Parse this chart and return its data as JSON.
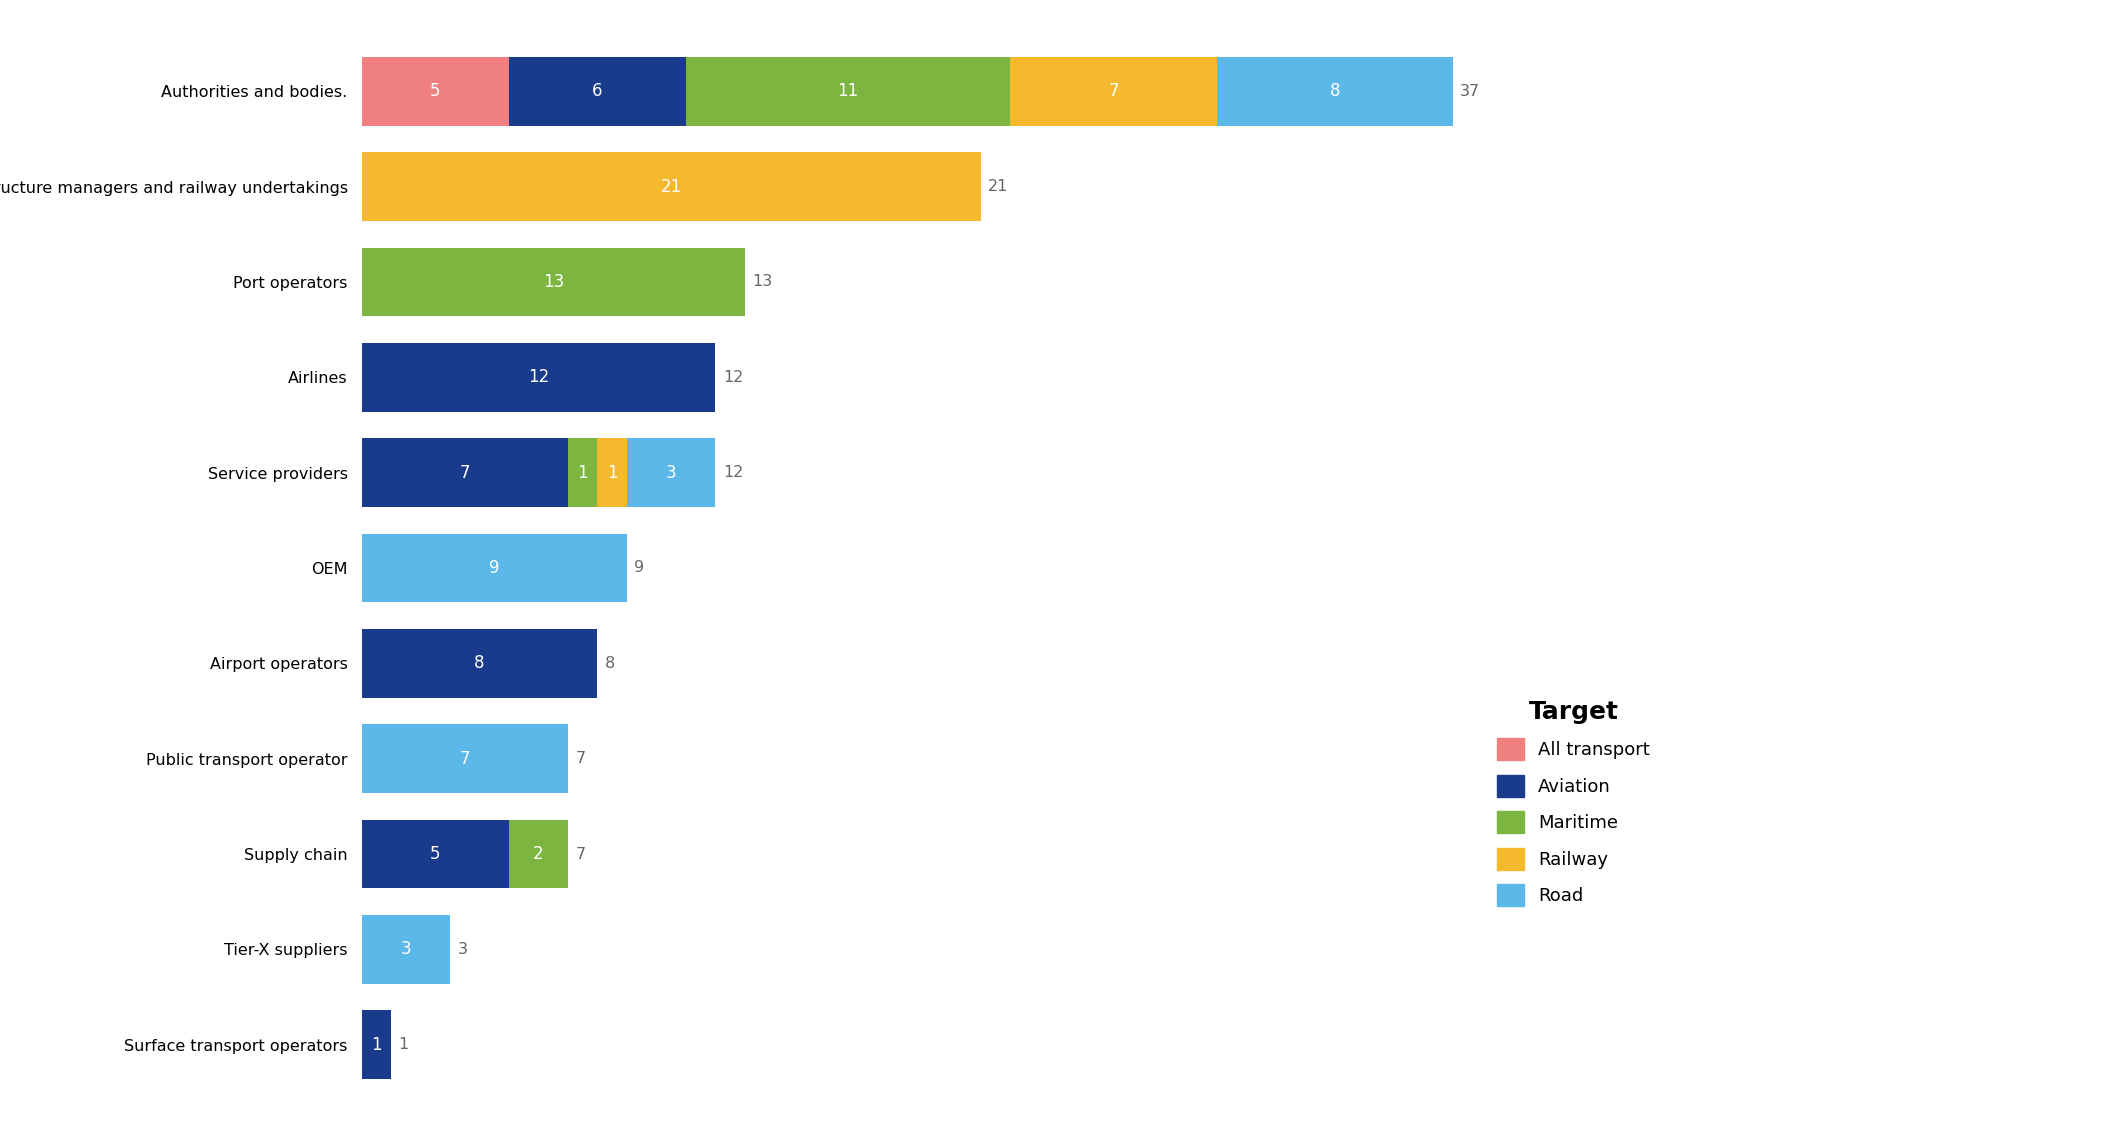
{
  "categories": [
    "Authorities and bodies.",
    "Infrastructure managers and railway undertakings",
    "Port operators",
    "Airlines",
    "Service providers",
    "OEM",
    "Airport operators",
    "Public transport operator",
    "Supply chain",
    "Tier-X suppliers",
    "Surface transport operators"
  ],
  "segments": {
    "All transport": {
      "color": "#F08080",
      "values": [
        5,
        0,
        0,
        0,
        0,
        0,
        0,
        0,
        0,
        0,
        0
      ]
    },
    "Aviation": {
      "color": "#1A3A8C",
      "values": [
        6,
        0,
        0,
        12,
        7,
        0,
        8,
        0,
        5,
        0,
        1
      ]
    },
    "Maritime": {
      "color": "#7CB640",
      "values": [
        11,
        0,
        13,
        0,
        1,
        0,
        0,
        0,
        2,
        0,
        0
      ]
    },
    "Railway": {
      "color": "#F5B92E",
      "values": [
        7,
        21,
        0,
        0,
        1,
        0,
        0,
        0,
        0,
        0,
        0
      ]
    },
    "Road": {
      "color": "#5BB8E8",
      "values": [
        8,
        0,
        0,
        0,
        3,
        9,
        0,
        7,
        0,
        3,
        0
      ]
    }
  },
  "totals": [
    37,
    21,
    13,
    12,
    12,
    9,
    8,
    7,
    7,
    3,
    1
  ],
  "legend_title": "Target",
  "legend_order": [
    "All transport",
    "Aviation",
    "Maritime",
    "Railway",
    "Road"
  ],
  "background_color": "#FFFFFF",
  "bar_height": 0.72,
  "label_fontsize": 12,
  "tick_fontsize": 11.5,
  "total_fontsize": 11.5,
  "legend_fontsize": 13,
  "legend_title_fontsize": 18
}
